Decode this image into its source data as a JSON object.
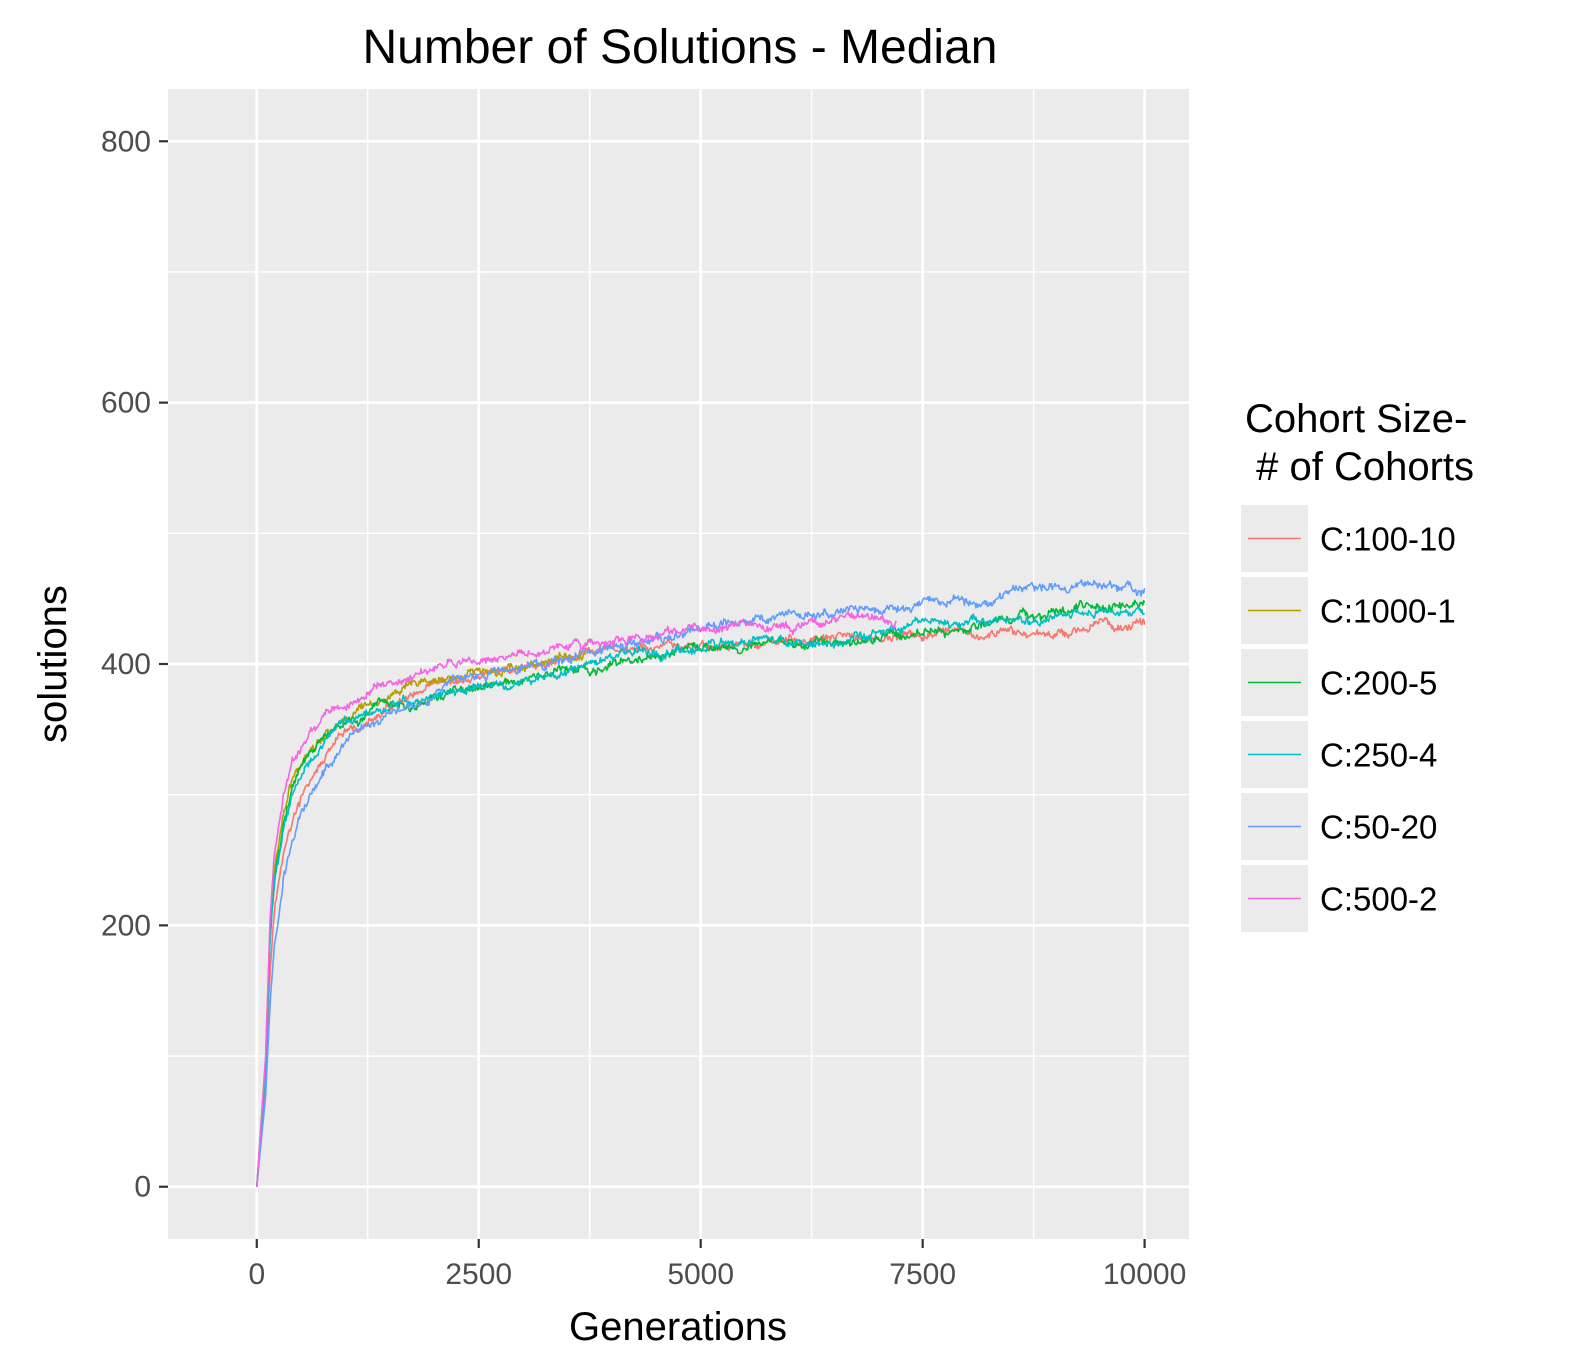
{
  "chart_data": {
    "type": "line",
    "title": "Number of Solutions - Median",
    "xlabel": "Generations",
    "ylabel": "solutions",
    "xlim": [
      -1000,
      10500
    ],
    "ylim": [
      -40,
      840
    ],
    "xticks": [
      0,
      2500,
      5000,
      7500,
      10000
    ],
    "xtick_labels": [
      "0",
      "2500",
      "5000",
      "7500",
      "10000"
    ],
    "yticks": [
      0,
      200,
      400,
      600,
      800
    ],
    "ytick_labels": [
      "0",
      "200",
      "400",
      "600",
      "800"
    ],
    "grid": true,
    "legend": {
      "title_line1": "Cohort Size-",
      "title_line2": " # of Cohorts",
      "placement": "right"
    },
    "series": [
      {
        "name": "C:100-10",
        "color": "#F8766D",
        "x": [
          0,
          100,
          150,
          200,
          300,
          400,
          500,
          600,
          800,
          1000,
          1200,
          1500,
          2000,
          2500,
          3000,
          3500,
          4000,
          4500,
          5000,
          5500,
          6000,
          6500,
          7000,
          7500,
          8000,
          8500,
          9000,
          9500,
          10000
        ],
        "y": [
          0,
          80,
          170,
          215,
          255,
          280,
          295,
          310,
          330,
          345,
          352,
          365,
          378,
          390,
          398,
          405,
          410,
          412,
          413,
          415,
          416,
          418,
          420,
          421,
          420,
          422,
          425,
          430,
          430
        ]
      },
      {
        "name": "C:1000-1",
        "color": "#B79F00",
        "x": [
          0,
          100,
          150,
          200,
          300,
          400,
          500,
          600,
          800,
          1000,
          1200,
          1500,
          2000,
          2500,
          3000,
          3500,
          3700
        ],
        "y": [
          0,
          100,
          200,
          245,
          285,
          310,
          325,
          338,
          350,
          360,
          368,
          376,
          385,
          393,
          400,
          405,
          407
        ]
      },
      {
        "name": "C:200-5",
        "color": "#00BA38",
        "x": [
          0,
          100,
          150,
          200,
          300,
          400,
          500,
          600,
          800,
          1000,
          1200,
          1500,
          2000,
          2500,
          3000,
          3500,
          3800,
          4000,
          4500,
          5000,
          5500,
          6000,
          6500,
          7000,
          7500,
          8000,
          8500,
          9000,
          9500,
          10000
        ],
        "y": [
          0,
          95,
          195,
          240,
          280,
          305,
          320,
          330,
          345,
          352,
          358,
          365,
          375,
          380,
          385,
          395,
          392,
          398,
          405,
          412,
          415,
          415,
          418,
          422,
          425,
          428,
          435,
          440,
          445,
          447
        ]
      },
      {
        "name": "C:250-4",
        "color": "#00BFC4",
        "x": [
          0,
          100,
          150,
          200,
          300,
          400,
          500,
          600,
          800,
          1000,
          1200,
          1500,
          2000,
          2500,
          3000,
          3500,
          4000,
          4500,
          5000,
          5500,
          6000,
          6500,
          7000,
          7500,
          8000,
          8500,
          9000,
          9500,
          10000
        ],
        "y": [
          0,
          90,
          190,
          235,
          275,
          300,
          318,
          330,
          345,
          355,
          360,
          368,
          375,
          382,
          385,
          395,
          405,
          410,
          412,
          415,
          415,
          418,
          422,
          428,
          430,
          432,
          436,
          440,
          438
        ]
      },
      {
        "name": "C:50-20",
        "color": "#619CFF",
        "x": [
          0,
          100,
          150,
          200,
          300,
          400,
          500,
          600,
          800,
          1000,
          1200,
          1500,
          2000,
          2500,
          3000,
          3500,
          4000,
          4500,
          5000,
          5500,
          6000,
          6500,
          7000,
          7500,
          8000,
          8500,
          9000,
          9500,
          10000
        ],
        "y": [
          0,
          70,
          140,
          185,
          235,
          265,
          285,
          300,
          325,
          342,
          352,
          365,
          378,
          390,
          398,
          405,
          412,
          418,
          425,
          432,
          440,
          438,
          440,
          445,
          448,
          455,
          458,
          460,
          458
        ]
      },
      {
        "name": "C:500-2",
        "color": "#F564E3",
        "x": [
          0,
          100,
          150,
          200,
          300,
          400,
          500,
          600,
          800,
          1000,
          1200,
          1500,
          2000,
          2500,
          3000,
          3500,
          4000,
          4500,
          5000,
          5500,
          6000,
          6500,
          7000,
          7200
        ],
        "y": [
          0,
          100,
          205,
          255,
          298,
          322,
          336,
          348,
          362,
          370,
          375,
          385,
          395,
          402,
          408,
          413,
          418,
          422,
          426,
          428,
          427,
          432,
          435,
          433
        ]
      }
    ]
  }
}
